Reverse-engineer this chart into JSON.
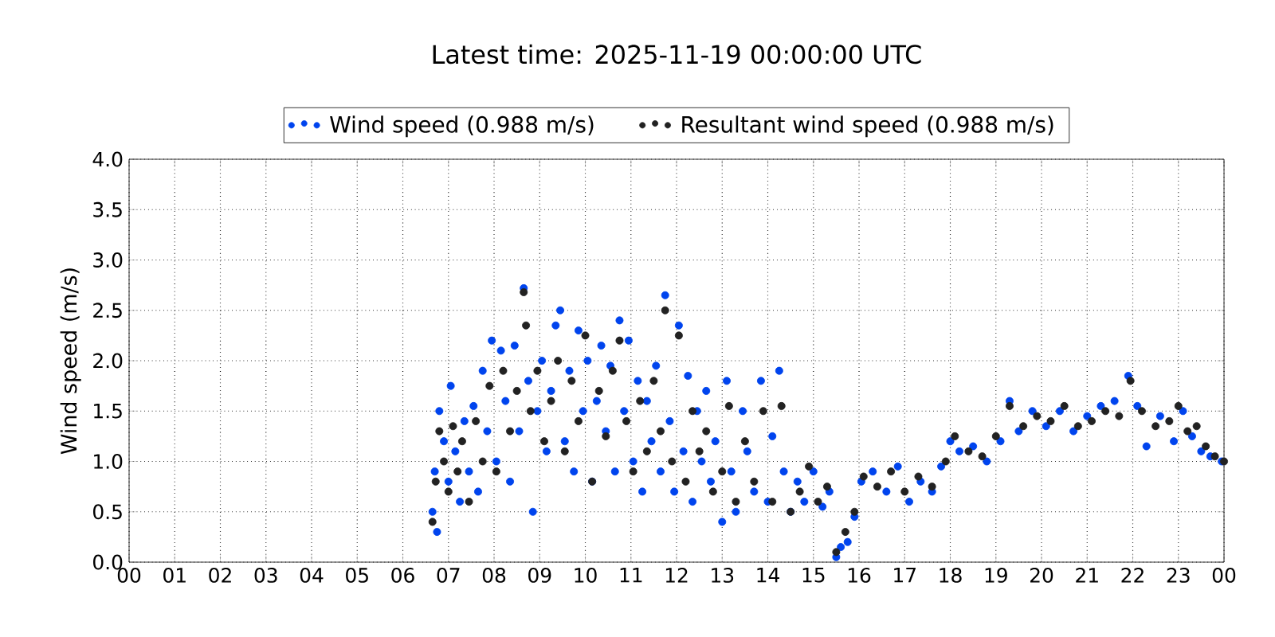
{
  "chart_data": {
    "type": "scatter",
    "title": "Latest time: 2025-11-19 00:00:00 UTC",
    "ylabel": "Wind speed (m/s)",
    "xlim": [
      0,
      24
    ],
    "ylim": [
      0,
      4
    ],
    "xticks": [
      {
        "value": 0,
        "label": "00"
      },
      {
        "value": 1,
        "label": "01"
      },
      {
        "value": 2,
        "label": "02"
      },
      {
        "value": 3,
        "label": "03"
      },
      {
        "value": 4,
        "label": "04"
      },
      {
        "value": 5,
        "label": "05"
      },
      {
        "value": 6,
        "label": "06"
      },
      {
        "value": 7,
        "label": "07"
      },
      {
        "value": 8,
        "label": "08"
      },
      {
        "value": 9,
        "label": "09"
      },
      {
        "value": 10,
        "label": "10"
      },
      {
        "value": 11,
        "label": "11"
      },
      {
        "value": 12,
        "label": "12"
      },
      {
        "value": 13,
        "label": "13"
      },
      {
        "value": 14,
        "label": "14"
      },
      {
        "value": 15,
        "label": "15"
      },
      {
        "value": 16,
        "label": "16"
      },
      {
        "value": 17,
        "label": "17"
      },
      {
        "value": 18,
        "label": "18"
      },
      {
        "value": 19,
        "label": "19"
      },
      {
        "value": 20,
        "label": "20"
      },
      {
        "value": 21,
        "label": "21"
      },
      {
        "value": 22,
        "label": "22"
      },
      {
        "value": 23,
        "label": "23"
      },
      {
        "value": 24,
        "label": "00"
      }
    ],
    "yticks": [
      {
        "value": 0,
        "label": "0.0"
      },
      {
        "value": 0.5,
        "label": "0.5"
      },
      {
        "value": 1,
        "label": "1.0"
      },
      {
        "value": 1.5,
        "label": "1.5"
      },
      {
        "value": 2,
        "label": "2.0"
      },
      {
        "value": 2.5,
        "label": "2.5"
      },
      {
        "value": 3,
        "label": "3.0"
      },
      {
        "value": 3.5,
        "label": "3.5"
      },
      {
        "value": 4,
        "label": "4.0"
      }
    ],
    "grid": true,
    "legend": "top",
    "series": [
      {
        "name": "Wind speed (0.988 m/s)",
        "color": "#0044ee",
        "x": [
          6.65,
          6.7,
          6.75,
          6.8,
          6.9,
          7.0,
          7.05,
          7.15,
          7.25,
          7.35,
          7.45,
          7.55,
          7.65,
          7.75,
          7.85,
          7.95,
          8.05,
          8.15,
          8.25,
          8.35,
          8.45,
          8.55,
          8.65,
          8.75,
          8.85,
          8.95,
          9.05,
          9.15,
          9.25,
          9.35,
          9.45,
          9.55,
          9.65,
          9.75,
          9.85,
          9.95,
          10.05,
          10.15,
          10.25,
          10.35,
          10.45,
          10.55,
          10.65,
          10.75,
          10.85,
          10.95,
          11.05,
          11.15,
          11.25,
          11.35,
          11.45,
          11.55,
          11.65,
          11.75,
          11.85,
          11.95,
          12.05,
          12.15,
          12.25,
          12.35,
          12.45,
          12.55,
          12.65,
          12.75,
          12.85,
          13.0,
          13.1,
          13.2,
          13.3,
          13.45,
          13.55,
          13.7,
          13.85,
          14.0,
          14.1,
          14.25,
          14.35,
          14.5,
          14.65,
          14.8,
          15.0,
          15.2,
          15.35,
          15.5,
          15.6,
          15.75,
          15.9,
          16.05,
          16.3,
          16.6,
          16.85,
          17.1,
          17.35,
          17.6,
          17.8,
          18.0,
          18.2,
          18.5,
          18.8,
          19.1,
          19.3,
          19.5,
          19.8,
          20.1,
          20.4,
          20.7,
          21.0,
          21.3,
          21.6,
          21.9,
          22.1,
          22.3,
          22.6,
          22.9,
          23.1,
          23.3,
          23.5,
          23.7,
          23.95
        ],
        "values": [
          0.5,
          0.9,
          0.3,
          1.5,
          1.2,
          0.8,
          1.75,
          1.1,
          0.6,
          1.4,
          0.9,
          1.55,
          0.7,
          1.9,
          1.3,
          2.2,
          1.0,
          2.1,
          1.6,
          0.8,
          2.15,
          1.3,
          2.72,
          1.8,
          0.5,
          1.5,
          2.0,
          1.1,
          1.7,
          2.35,
          2.5,
          1.2,
          1.9,
          0.9,
          2.3,
          1.5,
          2.0,
          0.8,
          1.6,
          2.15,
          1.3,
          1.95,
          0.9,
          2.4,
          1.5,
          2.2,
          1.0,
          1.8,
          0.7,
          1.6,
          1.2,
          1.95,
          0.9,
          2.65,
          1.4,
          0.7,
          2.35,
          1.1,
          1.85,
          0.6,
          1.5,
          1.0,
          1.7,
          0.8,
          1.2,
          0.4,
          1.8,
          0.9,
          0.5,
          1.5,
          1.1,
          0.7,
          1.8,
          0.6,
          1.25,
          1.9,
          0.9,
          0.5,
          0.8,
          0.6,
          0.9,
          0.55,
          0.7,
          0.05,
          0.15,
          0.2,
          0.45,
          0.8,
          0.9,
          0.7,
          0.95,
          0.6,
          0.8,
          0.7,
          0.95,
          1.2,
          1.1,
          1.15,
          1.0,
          1.2,
          1.6,
          1.3,
          1.5,
          1.35,
          1.5,
          1.3,
          1.45,
          1.55,
          1.6,
          1.85,
          1.55,
          1.15,
          1.45,
          1.2,
          1.5,
          1.25,
          1.1,
          1.05,
          1.0
        ]
      },
      {
        "name": "Resultant wind speed (0.988 m/s)",
        "color": "#222222",
        "x": [
          6.65,
          6.72,
          6.8,
          6.9,
          7.0,
          7.1,
          7.2,
          7.3,
          7.45,
          7.6,
          7.75,
          7.9,
          8.05,
          8.2,
          8.35,
          8.5,
          8.65,
          8.7,
          8.8,
          8.95,
          9.1,
          9.25,
          9.4,
          9.55,
          9.7,
          9.85,
          10.0,
          10.15,
          10.3,
          10.45,
          10.6,
          10.75,
          10.9,
          11.05,
          11.2,
          11.35,
          11.5,
          11.65,
          11.75,
          11.9,
          12.05,
          12.2,
          12.35,
          12.5,
          12.65,
          12.8,
          13.0,
          13.15,
          13.3,
          13.5,
          13.7,
          13.9,
          14.1,
          14.3,
          14.5,
          14.7,
          14.9,
          15.1,
          15.3,
          15.5,
          15.7,
          15.9,
          16.1,
          16.4,
          16.7,
          17.0,
          17.3,
          17.6,
          17.9,
          18.1,
          18.4,
          18.7,
          19.0,
          19.3,
          19.6,
          19.9,
          20.2,
          20.5,
          20.8,
          21.1,
          21.4,
          21.7,
          21.95,
          22.2,
          22.5,
          22.8,
          23.0,
          23.2,
          23.4,
          23.6,
          23.8,
          24.0
        ],
        "values": [
          0.4,
          0.8,
          1.3,
          1.0,
          0.7,
          1.35,
          0.9,
          1.2,
          0.6,
          1.4,
          1.0,
          1.75,
          0.9,
          1.9,
          1.3,
          1.7,
          2.68,
          2.35,
          1.5,
          1.9,
          1.2,
          1.6,
          2.0,
          1.1,
          1.8,
          1.4,
          2.25,
          0.8,
          1.7,
          1.25,
          1.9,
          2.2,
          1.4,
          0.9,
          1.6,
          1.1,
          1.8,
          1.3,
          2.5,
          1.0,
          2.25,
          0.8,
          1.5,
          1.1,
          1.3,
          0.7,
          0.9,
          1.55,
          0.6,
          1.2,
          0.8,
          1.5,
          0.6,
          1.55,
          0.5,
          0.7,
          0.95,
          0.6,
          0.75,
          0.1,
          0.3,
          0.5,
          0.85,
          0.75,
          0.9,
          0.7,
          0.85,
          0.75,
          1.0,
          1.25,
          1.1,
          1.05,
          1.25,
          1.55,
          1.35,
          1.45,
          1.4,
          1.55,
          1.35,
          1.4,
          1.5,
          1.45,
          1.8,
          1.5,
          1.35,
          1.4,
          1.55,
          1.3,
          1.35,
          1.15,
          1.05,
          1.0
        ]
      }
    ]
  }
}
